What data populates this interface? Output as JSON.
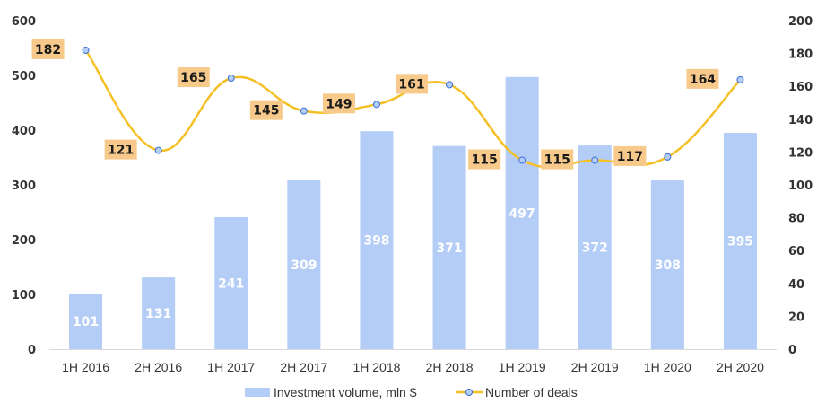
{
  "chart_data": {
    "type": "bar",
    "categories": [
      "1H 2016",
      "2H 2016",
      "1H 2017",
      "2H 2017",
      "1H 2018",
      "2H 2018",
      "1H 2019",
      "2H 2019",
      "1H 2020",
      "2H 2020"
    ],
    "series": [
      {
        "name": "Investment volume, mln $",
        "type": "bar",
        "axis": "left",
        "values": [
          101,
          131,
          241,
          309,
          398,
          371,
          497,
          372,
          308,
          395
        ]
      },
      {
        "name": "Number of deals",
        "type": "line",
        "axis": "right",
        "values": [
          182,
          121,
          165,
          145,
          149,
          161,
          115,
          115,
          117,
          164
        ]
      }
    ],
    "ylim": [
      0,
      600
    ],
    "y_ticks": [
      "0",
      "100",
      "200",
      "300",
      "400",
      "500",
      "600"
    ],
    "y2lim": [
      0,
      200
    ],
    "y2_ticks": [
      "0",
      "20",
      "40",
      "60",
      "80",
      "100",
      "120",
      "140",
      "160",
      "180",
      "200"
    ],
    "grid": false,
    "legend_position": "bottom",
    "colors": {
      "bar": "#b4cdf7",
      "line": "#f4c025",
      "marker_fill": "#b4cdf7",
      "marker_stroke": "#3b6fd4",
      "label_box": "#f7c98a",
      "axis": "#d9d9d9"
    }
  }
}
